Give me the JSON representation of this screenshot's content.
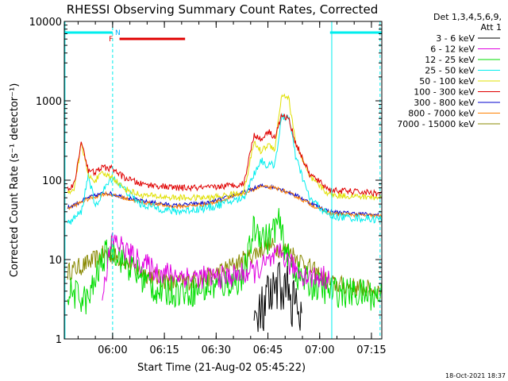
{
  "chart_data": {
    "type": "line",
    "title": "RHESSI Observing Summary Count Rates, Corrected",
    "ylabel": "Corrected Count Rate (s⁻¹ detector⁻¹)",
    "xlabel": "Start Time (21-Aug-02 05:45:22)",
    "footer": "18-Oct-2021 18:37",
    "y_scale": "log",
    "ylim": [
      1,
      10000
    ],
    "y_ticks": [
      {
        "v": 1,
        "label": "1"
      },
      {
        "v": 10,
        "label": "10"
      },
      {
        "v": 100,
        "label": "100"
      },
      {
        "v": 1000,
        "label": "1000"
      },
      {
        "v": 10000,
        "label": "10000"
      }
    ],
    "xlim": [
      -7,
      85
    ],
    "x_unit": "minutes after 05:53 UT",
    "x_ticks": [
      {
        "v": 7,
        "label": "06:00"
      },
      {
        "v": 22,
        "label": "06:15"
      },
      {
        "v": 37,
        "label": "06:30"
      },
      {
        "v": 52,
        "label": "06:45"
      },
      {
        "v": 67,
        "label": "07:00"
      },
      {
        "v": 82,
        "label": "07:15"
      }
    ],
    "legend": {
      "header": [
        "Det 1,3,4,5,6,9,",
        "Att 1"
      ],
      "position": "top-right"
    },
    "series": [
      {
        "name": "3 - 6 keV",
        "color": "#000000",
        "noise": 0.35,
        "floor": 1,
        "x": [
          48,
          50,
          52,
          54,
          56,
          58,
          60,
          62
        ],
        "y": [
          1.5,
          2,
          3,
          3.5,
          5,
          4,
          2.5,
          1.5
        ]
      },
      {
        "name": "6 - 12 keV",
        "color": "#e000e0",
        "noise": 0.15,
        "x": [
          4,
          7,
          10,
          14,
          20,
          30,
          40,
          48,
          52,
          56,
          58,
          61,
          64,
          70
        ],
        "y": [
          4,
          18,
          14,
          10,
          7,
          6,
          6,
          7,
          9,
          12,
          9,
          7,
          6,
          6
        ]
      },
      {
        "name": "12 - 25 keV",
        "color": "#00dd00",
        "noise": 0.2,
        "x": [
          -6,
          0,
          4,
          7,
          12,
          20,
          30,
          40,
          45,
          48,
          52,
          55,
          58,
          61,
          64,
          70,
          85
        ],
        "y": [
          4,
          3,
          10,
          14,
          8,
          4,
          4,
          5,
          6,
          25,
          18,
          30,
          10,
          6,
          5,
          4,
          3.5
        ]
      },
      {
        "name": "25 - 50 keV",
        "color": "#00eeee",
        "noise": 0.05,
        "x": [
          -6,
          -2,
          0,
          2,
          4,
          7,
          10,
          15,
          25,
          35,
          45,
          48,
          50,
          52,
          54,
          56,
          58,
          60,
          64,
          70,
          85
        ],
        "y": [
          28,
          40,
          120,
          45,
          70,
          110,
          80,
          50,
          40,
          45,
          60,
          120,
          180,
          150,
          160,
          600,
          650,
          200,
          60,
          35,
          32
        ]
      },
      {
        "name": "50 - 100 keV",
        "color": "#e0e000",
        "noise": 0.04,
        "x": [
          -6,
          -4,
          -2,
          0,
          2,
          4,
          7,
          10,
          15,
          25,
          35,
          45,
          48,
          50,
          52,
          54,
          56,
          58,
          60,
          64,
          70,
          85
        ],
        "y": [
          70,
          80,
          300,
          110,
          100,
          120,
          110,
          80,
          65,
          60,
          60,
          70,
          300,
          230,
          280,
          250,
          1200,
          1100,
          300,
          110,
          65,
          60
        ]
      },
      {
        "name": "100 - 300 keV",
        "color": "#e00000",
        "noise": 0.04,
        "x": [
          -6,
          -4,
          -2,
          0,
          2,
          4,
          7,
          10,
          15,
          25,
          35,
          45,
          48,
          50,
          52,
          54,
          56,
          58,
          60,
          64,
          70,
          85
        ],
        "y": [
          80,
          90,
          320,
          130,
          125,
          145,
          140,
          110,
          90,
          80,
          80,
          90,
          380,
          320,
          420,
          350,
          650,
          600,
          300,
          120,
          75,
          68
        ]
      },
      {
        "name": "300 - 800 keV",
        "color": "#0000cc",
        "noise": 0.025,
        "x": [
          -6,
          0,
          5,
          15,
          25,
          35,
          45,
          50,
          55,
          60,
          65,
          70,
          85
        ],
        "y": [
          45,
          60,
          70,
          55,
          48,
          52,
          70,
          85,
          80,
          65,
          50,
          40,
          36
        ]
      },
      {
        "name": "800 - 7000 keV",
        "color": "#ff8000",
        "noise": 0.025,
        "x": [
          -6,
          0,
          5,
          15,
          25,
          35,
          45,
          50,
          55,
          60,
          65,
          70,
          85
        ],
        "y": [
          44,
          58,
          68,
          53,
          46,
          50,
          68,
          83,
          78,
          63,
          48,
          38,
          35
        ]
      },
      {
        "name": "7000 - 15000 keV",
        "color": "#888800",
        "noise": 0.12,
        "x": [
          -6,
          0,
          5,
          10,
          15,
          25,
          35,
          45,
          52,
          58,
          64,
          70,
          85
        ],
        "y": [
          7,
          9,
          12,
          10,
          7,
          5,
          6,
          10,
          15,
          13,
          8,
          5,
          4
        ]
      }
    ],
    "annotations": {
      "attenuator_bars": [
        {
          "color": "#00eeee",
          "x0": -7,
          "x1": 7
        },
        {
          "color": "#00eeee",
          "x0": 70,
          "x1": 85
        }
      ],
      "flag_bar": {
        "color": "#e00000",
        "x0": 9,
        "x1": 28
      },
      "markers": [
        {
          "label": "F",
          "color": "#e00000",
          "x": 6.5
        },
        {
          "label": "N",
          "color": "#00aaff",
          "x": 8.5
        }
      ],
      "vertical_lines": [
        {
          "x": -6.8,
          "style": "solid",
          "color": "#00eeee"
        },
        {
          "x": 7,
          "style": "dashed",
          "color": "#00eeee"
        },
        {
          "x": 70.5,
          "style": "solid",
          "color": "#00eeee"
        },
        {
          "x": 84.5,
          "style": "dashed",
          "color": "#00eeee"
        }
      ]
    }
  }
}
